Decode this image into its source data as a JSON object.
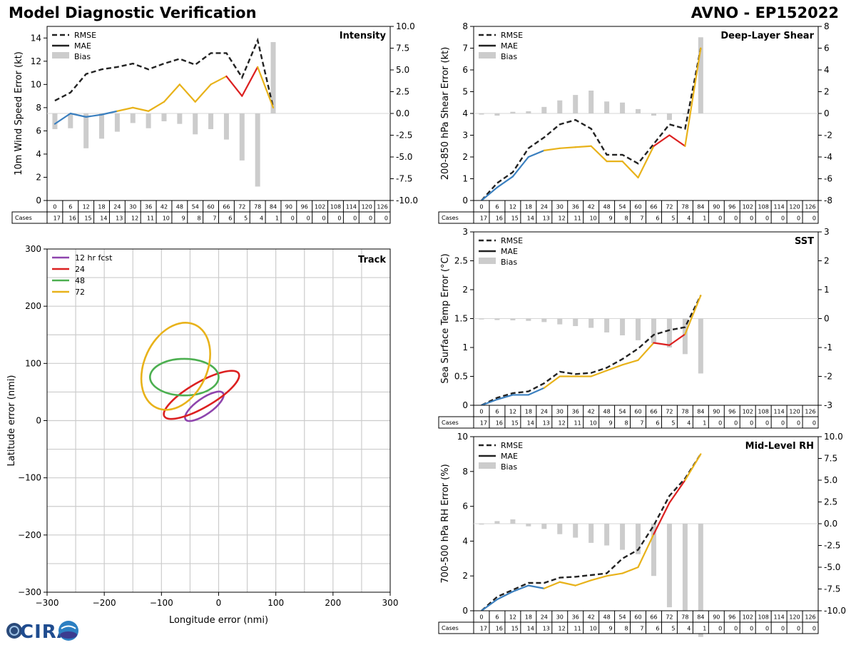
{
  "header": {
    "title": "Model Diagnostic Verification",
    "storm_id": "AVNO - EP152022"
  },
  "logo": {
    "text": "CIRA"
  },
  "colors": {
    "early": "#3a7fbf",
    "mid": "#e8b21a",
    "late": "#dc2020",
    "rmse": "#222222",
    "bias": "#cccccc",
    "grid": "#cccccc"
  },
  "legend_labels": [
    "RMSE",
    "MAE",
    "Bias"
  ],
  "table": {
    "cases_label": "Cases",
    "hours": [
      0,
      6,
      12,
      18,
      24,
      30,
      36,
      42,
      48,
      54,
      60,
      66,
      72,
      78,
      84,
      90,
      96,
      102,
      108,
      114,
      120,
      126
    ],
    "cases": [
      17,
      16,
      15,
      14,
      13,
      12,
      11,
      10,
      9,
      8,
      7,
      6,
      5,
      4,
      1,
      0,
      0,
      0,
      0,
      0,
      0,
      0
    ]
  },
  "chart_data": [
    {
      "id": "intensity",
      "type": "line",
      "title": "Intensity",
      "ylabel": "10m Wind Speed Error (kt)",
      "ylim": [
        0,
        15
      ],
      "yticks": [
        0,
        2,
        4,
        6,
        8,
        10,
        12,
        14
      ],
      "ylim_right": [
        -10,
        10
      ],
      "yticks_right": [
        -10.0,
        -7.5,
        -5.0,
        -2.5,
        0.0,
        2.5,
        5.0,
        7.5,
        10.0
      ],
      "x": [
        0,
        6,
        12,
        18,
        24,
        30,
        36,
        42,
        48,
        54,
        60,
        66,
        72,
        78,
        84
      ],
      "rmse": [
        8.6,
        9.3,
        10.9,
        11.3,
        11.5,
        11.8,
        11.3,
        11.8,
        12.2,
        11.7,
        12.7,
        12.7,
        10.6,
        13.8,
        8.0
      ],
      "mae": [
        6.6,
        7.5,
        7.2,
        7.4,
        7.7,
        8.0,
        7.7,
        8.5,
        10.0,
        8.5,
        10.0,
        10.7,
        9.0,
        11.5,
        8.0
      ],
      "bias": [
        -1.8,
        -1.7,
        -4.0,
        -2.9,
        -2.1,
        -1.1,
        -1.7,
        -0.9,
        -1.2,
        -2.4,
        -1.8,
        -3.0,
        -5.4,
        -8.4,
        8.2
      ]
    },
    {
      "id": "shear",
      "type": "line",
      "title": "Deep-Layer Shear",
      "ylabel": "200-850 hPa Shear Error (kt)",
      "ylim": [
        0,
        8
      ],
      "yticks": [
        0,
        1,
        2,
        3,
        4,
        5,
        6,
        7,
        8
      ],
      "ylim_right": [
        -8,
        8
      ],
      "yticks_right": [
        -8,
        -6,
        -4,
        -2,
        0,
        2,
        4,
        6,
        8
      ],
      "x": [
        0,
        6,
        12,
        18,
        24,
        30,
        36,
        42,
        48,
        54,
        60,
        66,
        72,
        78,
        84
      ],
      "rmse": [
        0.0,
        0.8,
        1.3,
        2.4,
        2.9,
        3.5,
        3.7,
        3.3,
        2.1,
        2.1,
        1.7,
        2.6,
        3.5,
        3.3,
        7.0
      ],
      "mae": [
        0.0,
        0.6,
        1.1,
        2.0,
        2.3,
        2.4,
        2.45,
        2.5,
        1.8,
        1.8,
        1.05,
        2.5,
        3.0,
        2.5,
        7.0
      ],
      "bias": [
        -0.1,
        -0.2,
        0.15,
        0.2,
        0.6,
        1.2,
        1.7,
        2.1,
        1.1,
        1.0,
        0.4,
        -0.2,
        -0.6,
        0.0,
        7.0
      ]
    },
    {
      "id": "sst",
      "type": "line",
      "title": "SST",
      "ylabel": "Sea Surface Temp Error (°C)",
      "ylim": [
        0,
        3
      ],
      "yticks": [
        0.0,
        0.5,
        1.0,
        1.5,
        2.0,
        2.5,
        3.0
      ],
      "ylim_right": [
        -3,
        3
      ],
      "yticks_right": [
        -3,
        -2,
        -1,
        0,
        1,
        2,
        3
      ],
      "x": [
        0,
        6,
        12,
        18,
        24,
        30,
        36,
        42,
        48,
        54,
        60,
        66,
        72,
        78,
        84
      ],
      "rmse": [
        0.0,
        0.13,
        0.21,
        0.24,
        0.38,
        0.58,
        0.54,
        0.56,
        0.65,
        0.8,
        0.98,
        1.22,
        1.3,
        1.35,
        1.9
      ],
      "mae": [
        0.0,
        0.1,
        0.18,
        0.18,
        0.3,
        0.5,
        0.5,
        0.5,
        0.6,
        0.7,
        0.78,
        1.08,
        1.04,
        1.23,
        1.9
      ],
      "bias": [
        0.0,
        -0.05,
        -0.06,
        -0.08,
        -0.12,
        -0.2,
        -0.26,
        -0.32,
        -0.48,
        -0.58,
        -0.75,
        -0.85,
        -1.0,
        -1.23,
        -1.9
      ]
    },
    {
      "id": "rh",
      "type": "line",
      "title": "Mid-Level RH",
      "ylabel": "700-500 hPa RH Error (%)",
      "ylim": [
        0,
        10
      ],
      "yticks": [
        0,
        2,
        4,
        6,
        8,
        10
      ],
      "ylim_right": [
        -10,
        10
      ],
      "yticks_right": [
        -10.0,
        -7.5,
        -5.0,
        -2.5,
        0.0,
        2.5,
        5.0,
        7.5,
        10.0
      ],
      "x": [
        0,
        6,
        12,
        18,
        24,
        30,
        36,
        42,
        48,
        54,
        60,
        66,
        72,
        78,
        84
      ],
      "rmse": [
        0.0,
        0.8,
        1.2,
        1.6,
        1.6,
        1.9,
        1.95,
        2.05,
        2.15,
        3.0,
        3.5,
        4.9,
        6.6,
        7.6,
        9.0
      ],
      "mae": [
        0.0,
        0.65,
        1.1,
        1.45,
        1.28,
        1.65,
        1.45,
        1.75,
        2.0,
        2.15,
        2.5,
        4.4,
        6.2,
        7.5,
        9.0
      ],
      "bias": [
        0.0,
        0.3,
        0.5,
        -0.3,
        -0.6,
        -1.2,
        -1.6,
        -2.2,
        -2.5,
        -3.0,
        -3.5,
        -6.0,
        -9.6,
        -11.0,
        -13.0
      ]
    },
    {
      "id": "track",
      "type": "scatter",
      "title": "Track",
      "xlabel": "Longitude error (nmi)",
      "ylabel": "Latitude error (nmi)",
      "xlim": [
        -300,
        300
      ],
      "ylim": [
        -300,
        300
      ],
      "ticks": [
        -300,
        -200,
        -100,
        0,
        100,
        200,
        300
      ],
      "grid_lines": [
        -250,
        -200,
        -150,
        -100,
        -50,
        0,
        50,
        100,
        150,
        200,
        250
      ],
      "ellipses": [
        {
          "label": "12 hr fcst",
          "color": "#8e44ad",
          "cx": -25,
          "cy": 25,
          "a": 40,
          "b": 14,
          "angle_deg": -35
        },
        {
          "label": "24",
          "color": "#dc2020",
          "cx": -30,
          "cy": 45,
          "a": 75,
          "b": 22,
          "angle_deg": -30
        },
        {
          "label": "48",
          "color": "#4caf50",
          "cx": -60,
          "cy": 76,
          "a": 60,
          "b": 32,
          "angle_deg": 0
        },
        {
          "label": "72",
          "color": "#e8b21a",
          "cx": -75,
          "cy": 95,
          "a": 80,
          "b": 55,
          "angle_deg": -65
        }
      ]
    }
  ]
}
